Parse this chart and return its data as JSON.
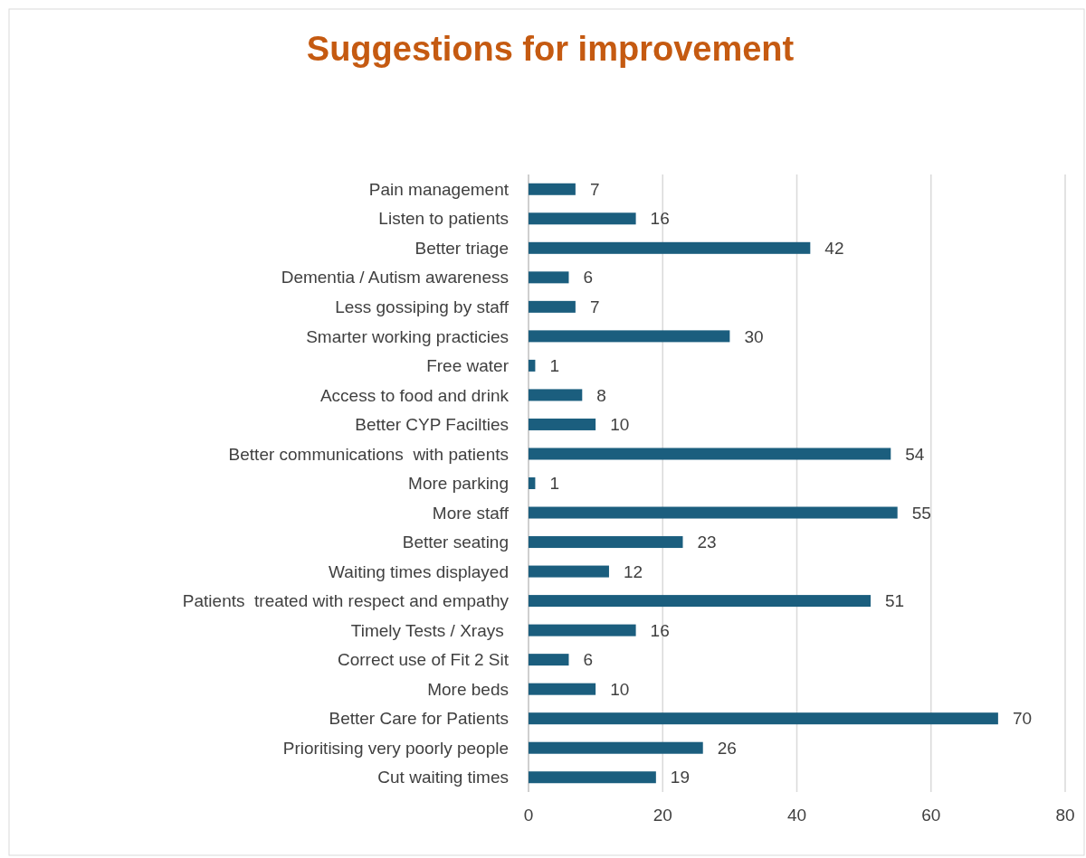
{
  "chart_data": {
    "type": "bar",
    "orientation": "horizontal",
    "title": "Suggestions for improvement",
    "categories": [
      "Pain management",
      "Listen to patients",
      "Better triage",
      "Dementia / Autism awareness",
      "Less gossiping by staff",
      "Smarter working practicies",
      "Free water",
      "Access to food and drink",
      "Better CYP Facilties",
      "Better communications  with patients",
      "More parking",
      "More staff",
      "Better seating",
      "Waiting times displayed",
      "Patients  treated with respect and empathy",
      "Timely Tests / Xrays ",
      "Correct use of Fit 2 Sit",
      "More beds",
      "Better Care for Patients",
      "Prioritising very poorly people",
      "Cut waiting times"
    ],
    "values": [
      7,
      16,
      42,
      6,
      7,
      30,
      1,
      8,
      10,
      54,
      1,
      55,
      23,
      12,
      51,
      16,
      6,
      10,
      70,
      26,
      19
    ],
    "color": "#1b5e7e",
    "xlim": [
      0,
      80
    ],
    "xticks": [
      0,
      20,
      40,
      60,
      80
    ],
    "grid": "x",
    "data_labels": true
  }
}
